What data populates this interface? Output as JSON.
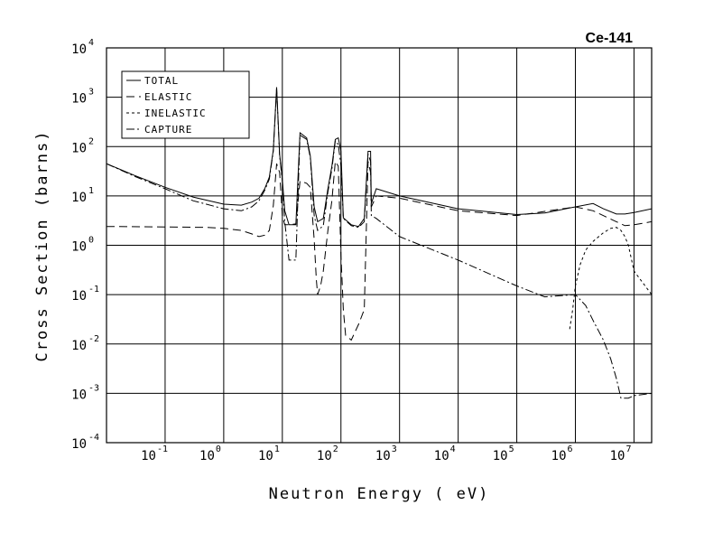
{
  "chart_data": {
    "type": "line",
    "title": "Ce-141",
    "xlabel": "Neutron Energy ( eV)",
    "ylabel": "Cross Section (barns)",
    "x_scale": "log",
    "y_scale": "log",
    "xlim": [
      0.01,
      20000000
    ],
    "ylim": [
      0.0001,
      10000
    ],
    "grid": true,
    "legend_position": "top-left",
    "x_ticks": [
      {
        "value": 0.1,
        "base": "10",
        "exp": "-1"
      },
      {
        "value": 1,
        "base": "10",
        "exp": "0"
      },
      {
        "value": 10,
        "base": "10",
        "exp": "1"
      },
      {
        "value": 100,
        "base": "10",
        "exp": "2"
      },
      {
        "value": 1000,
        "base": "10",
        "exp": "3"
      },
      {
        "value": 10000,
        "base": "10",
        "exp": "4"
      },
      {
        "value": 100000,
        "base": "10",
        "exp": "5"
      },
      {
        "value": 1000000,
        "base": "10",
        "exp": "6"
      },
      {
        "value": 10000000,
        "base": "10",
        "exp": "7"
      }
    ],
    "y_ticks": [
      {
        "value": 10000,
        "base": "10",
        "exp": "4"
      },
      {
        "value": 1000,
        "base": "10",
        "exp": "3"
      },
      {
        "value": 100,
        "base": "10",
        "exp": "2"
      },
      {
        "value": 10,
        "base": "10",
        "exp": "1"
      },
      {
        "value": 1,
        "base": "10",
        "exp": "0"
      },
      {
        "value": 0.1,
        "base": "10",
        "exp": "-1"
      },
      {
        "value": 0.01,
        "base": "10",
        "exp": "-2"
      },
      {
        "value": 0.001,
        "base": "10",
        "exp": "-3"
      },
      {
        "value": 0.0001,
        "base": "10",
        "exp": "-4"
      }
    ],
    "series": [
      {
        "name": "TOTAL",
        "dash": "solid",
        "points": [
          [
            0.01,
            45
          ],
          [
            0.03,
            26
          ],
          [
            0.1,
            15
          ],
          [
            0.3,
            9.5
          ],
          [
            1,
            6.8
          ],
          [
            2,
            6.5
          ],
          [
            3,
            7.5
          ],
          [
            4,
            9
          ],
          [
            5,
            14
          ],
          [
            6,
            24
          ],
          [
            7,
            85
          ],
          [
            8,
            1600
          ],
          [
            9,
            70
          ],
          [
            10,
            22
          ],
          [
            11,
            5
          ],
          [
            13,
            2.6
          ],
          [
            17,
            2.6
          ],
          [
            20,
            190
          ],
          [
            26,
            150
          ],
          [
            30,
            65
          ],
          [
            35,
            6
          ],
          [
            40,
            3
          ],
          [
            50,
            3.5
          ],
          [
            60,
            14
          ],
          [
            70,
            40
          ],
          [
            80,
            140
          ],
          [
            90,
            150
          ],
          [
            100,
            80
          ],
          [
            110,
            3.6
          ],
          [
            150,
            2.6
          ],
          [
            200,
            2.4
          ],
          [
            250,
            3.5
          ],
          [
            290,
            80
          ],
          [
            320,
            80
          ],
          [
            330,
            7
          ],
          [
            400,
            14
          ],
          [
            1000,
            10
          ],
          [
            10000,
            5.5
          ],
          [
            100000,
            4.2
          ],
          [
            300000,
            4.5
          ],
          [
            1000000,
            6
          ],
          [
            2000000,
            7
          ],
          [
            3000000,
            5.5
          ],
          [
            5000000,
            4.3
          ],
          [
            7000000,
            4.3
          ],
          [
            10000000,
            4.6
          ],
          [
            20000000,
            5.5
          ]
        ]
      },
      {
        "name": "ELASTIC",
        "dash": "long",
        "points": [
          [
            0.01,
            2.4
          ],
          [
            0.1,
            2.35
          ],
          [
            0.5,
            2.3
          ],
          [
            1,
            2.2
          ],
          [
            2,
            2.0
          ],
          [
            3,
            1.7
          ],
          [
            4,
            1.5
          ],
          [
            5,
            1.6
          ],
          [
            6,
            2
          ],
          [
            7,
            6.3
          ],
          [
            8,
            45
          ],
          [
            9,
            30
          ],
          [
            10,
            4
          ],
          [
            11,
            2.6
          ],
          [
            13,
            2.6
          ],
          [
            17,
            2.7
          ],
          [
            20,
            20
          ],
          [
            26,
            18
          ],
          [
            30,
            15
          ],
          [
            35,
            1.3
          ],
          [
            38,
            0.2
          ],
          [
            40,
            0.1
          ],
          [
            45,
            0.15
          ],
          [
            50,
            0.3
          ],
          [
            60,
            2
          ],
          [
            70,
            8
          ],
          [
            80,
            50
          ],
          [
            90,
            40
          ],
          [
            100,
            0.6
          ],
          [
            110,
            0.05
          ],
          [
            120,
            0.015
          ],
          [
            150,
            0.012
          ],
          [
            200,
            0.025
          ],
          [
            250,
            0.05
          ],
          [
            290,
            50
          ],
          [
            320,
            30
          ],
          [
            330,
            6
          ],
          [
            400,
            10
          ],
          [
            1000,
            9
          ],
          [
            10000,
            5
          ],
          [
            100000,
            4
          ],
          [
            1000000,
            6
          ],
          [
            2000000,
            5
          ],
          [
            5000000,
            3
          ],
          [
            7000000,
            2.5
          ],
          [
            10000000,
            2.6
          ],
          [
            20000000,
            3
          ]
        ]
      },
      {
        "name": "INELASTIC",
        "dash": "short",
        "points": [
          [
            800000,
            0.02
          ],
          [
            900000,
            0.05
          ],
          [
            1000000,
            0.15
          ],
          [
            1200000,
            0.4
          ],
          [
            1500000,
            0.8
          ],
          [
            2000000,
            1.2
          ],
          [
            3000000,
            1.8
          ],
          [
            4000000,
            2.2
          ],
          [
            5000000,
            2.3
          ],
          [
            6000000,
            2.0
          ],
          [
            7000000,
            1.5
          ],
          [
            8000000,
            1
          ],
          [
            10000000,
            0.3
          ],
          [
            20000000,
            0.1
          ]
        ]
      },
      {
        "name": "CAPTURE",
        "dash": "dashdot",
        "points": [
          [
            0.01,
            45
          ],
          [
            0.03,
            25
          ],
          [
            0.1,
            14
          ],
          [
            0.3,
            8
          ],
          [
            1,
            5.5
          ],
          [
            2,
            5
          ],
          [
            3,
            6
          ],
          [
            4,
            8
          ],
          [
            5,
            13
          ],
          [
            6,
            22
          ],
          [
            7,
            80
          ],
          [
            8,
            1500
          ],
          [
            9,
            65
          ],
          [
            10,
            20
          ],
          [
            11,
            3
          ],
          [
            13,
            0.5
          ],
          [
            17,
            0.5
          ],
          [
            20,
            170
          ],
          [
            26,
            140
          ],
          [
            30,
            60
          ],
          [
            35,
            4
          ],
          [
            40,
            2
          ],
          [
            50,
            2.5
          ],
          [
            60,
            12
          ],
          [
            70,
            35
          ],
          [
            80,
            130
          ],
          [
            90,
            110
          ],
          [
            100,
            40
          ],
          [
            110,
            3.5
          ],
          [
            150,
            2.5
          ],
          [
            200,
            2.3
          ],
          [
            250,
            3
          ],
          [
            290,
            70
          ],
          [
            320,
            50
          ],
          [
            330,
            4
          ],
          [
            400,
            3.5
          ],
          [
            1000,
            1.5
          ],
          [
            10000,
            0.5
          ],
          [
            100000,
            0.15
          ],
          [
            300000,
            0.09
          ],
          [
            1000000,
            0.1
          ],
          [
            1500000,
            0.06
          ],
          [
            2000000,
            0.03
          ],
          [
            3000000,
            0.012
          ],
          [
            4000000,
            0.005
          ],
          [
            5000000,
            0.002
          ],
          [
            6000000,
            0.0008
          ],
          [
            8000000,
            0.0008
          ],
          [
            10000000,
            0.0009
          ],
          [
            20000000,
            0.001
          ]
        ]
      }
    ]
  }
}
